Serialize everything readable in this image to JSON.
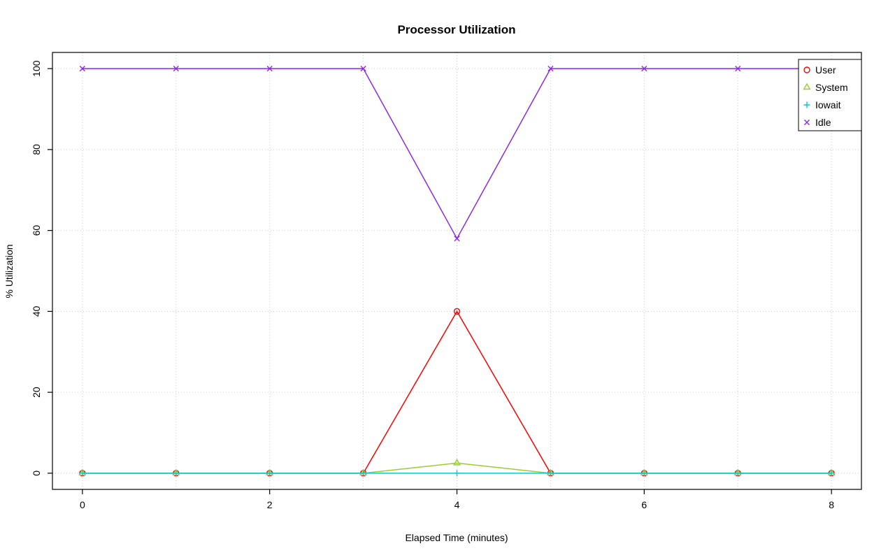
{
  "page": {
    "background": "#ffffff",
    "grid_color": "#c8c8c8",
    "axis_color": "#000000"
  },
  "chart_data": {
    "type": "line",
    "title": "Processor Utilization",
    "xlabel": "Elapsed Time (minutes)",
    "ylabel": "% Utilization",
    "x": [
      0,
      1,
      2,
      3,
      4,
      5,
      6,
      7,
      8
    ],
    "xlim": [
      0,
      8
    ],
    "ylim": [
      0,
      100
    ],
    "xticks": [
      0,
      2,
      4,
      6,
      8
    ],
    "yticks": [
      0,
      20,
      40,
      60,
      80,
      100
    ],
    "grid": true,
    "grid_x": [
      0,
      1,
      2,
      3,
      4,
      5,
      6,
      7,
      8
    ],
    "grid_y": [
      0,
      20,
      40,
      60,
      80,
      100
    ],
    "legend_position": "top-right",
    "series": [
      {
        "name": "User",
        "color": "#ff0000",
        "marker": "circle",
        "values": [
          0,
          0,
          0,
          0,
          40,
          0,
          0,
          0,
          0
        ]
      },
      {
        "name": "System",
        "color": "#9acd32",
        "marker": "triangle",
        "values": [
          0,
          0,
          0,
          0,
          2.5,
          0,
          0,
          0,
          0
        ]
      },
      {
        "name": "Iowait",
        "color": "#00cdcd",
        "marker": "plus",
        "values": [
          0,
          0,
          0,
          0,
          0,
          0,
          0,
          0,
          0
        ]
      },
      {
        "name": "Idle",
        "color": "#8a2be2",
        "marker": "x",
        "values": [
          100,
          100,
          100,
          100,
          58,
          100,
          100,
          100,
          100
        ]
      }
    ]
  }
}
